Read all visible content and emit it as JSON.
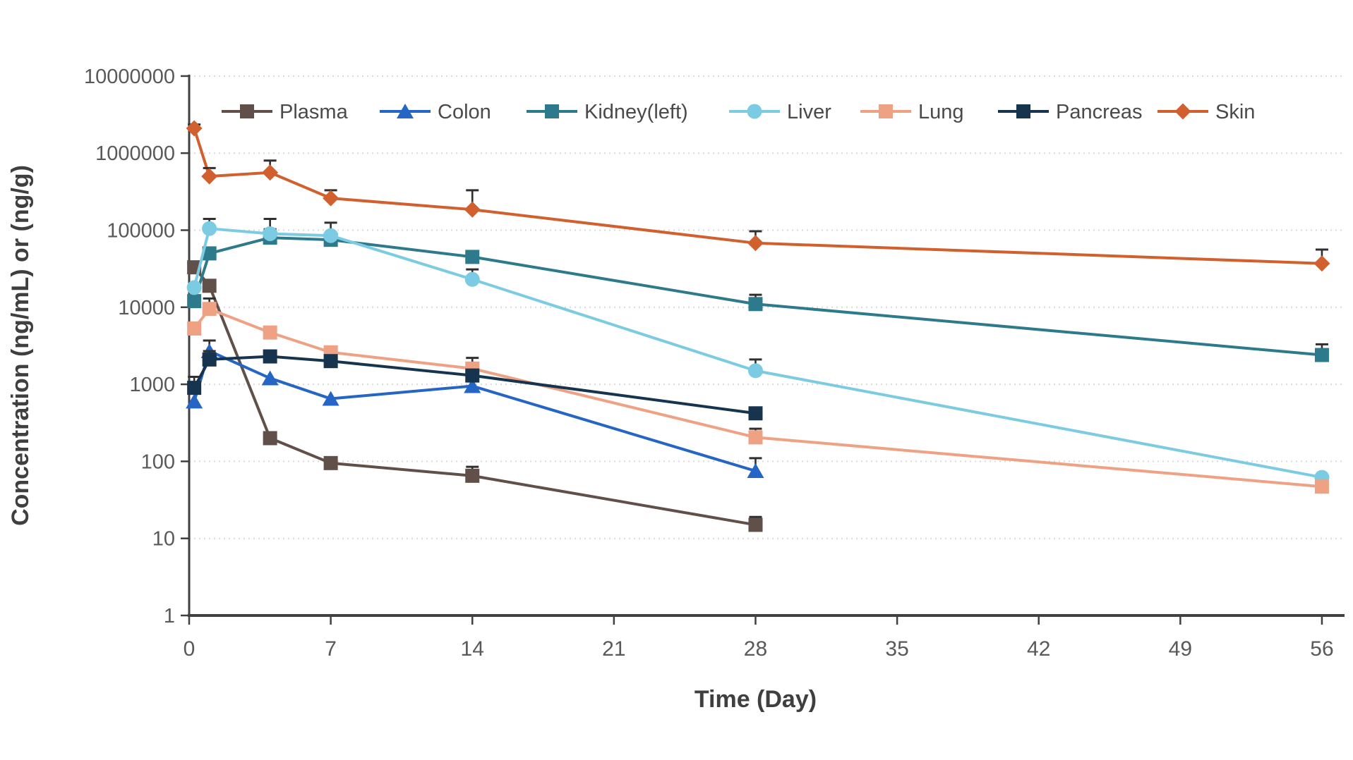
{
  "chart_data": {
    "type": "line",
    "title": "",
    "xlabel": "Time (Day)",
    "ylabel": "Concentration (ng/mL) or (ng/g)",
    "y_scale": "log",
    "xlim": [
      0,
      56
    ],
    "ylim": [
      1,
      10000000
    ],
    "x_ticks": [
      0,
      7,
      14,
      21,
      28,
      35,
      42,
      49,
      56
    ],
    "y_ticks": [
      1,
      10,
      100,
      1000,
      10000,
      100000,
      1000000,
      10000000
    ],
    "grid": "horizontal-dotted",
    "legend_position": "top-inside-horizontal",
    "colors": {
      "tick_label": "#595959",
      "axis_line": "#404040",
      "axis_title": "#3f3f3f",
      "legend_text": "#4a4a4a",
      "gridline": "#d9d9d9",
      "error_bar": "#2f2f2f"
    },
    "series": [
      {
        "name": "Plasma",
        "marker": "square",
        "color": "#61504a",
        "x": [
          0.25,
          1,
          4,
          7,
          14,
          28
        ],
        "y": [
          33000,
          19000,
          200,
          95,
          65,
          15
        ],
        "err_top": [
          null,
          null,
          null,
          null,
          85,
          19
        ]
      },
      {
        "name": "Colon",
        "marker": "triangle",
        "color": "#2565c5",
        "x": [
          0.25,
          1,
          4,
          7,
          14,
          28
        ],
        "y": [
          600,
          2700,
          1200,
          650,
          950,
          75
        ],
        "err_top": [
          null,
          3700,
          null,
          null,
          1400,
          110
        ]
      },
      {
        "name": "Kidney(left)",
        "marker": "square",
        "color": "#2d7a8c",
        "x": [
          0.25,
          1,
          4,
          7,
          14,
          28,
          56
        ],
        "y": [
          12000,
          50000,
          80000,
          75000,
          45000,
          11000,
          2400
        ],
        "err_top": [
          null,
          null,
          103000,
          null,
          null,
          14500,
          3300
        ]
      },
      {
        "name": "Liver",
        "marker": "circle",
        "color": "#7bcbe2",
        "x": [
          0.25,
          1,
          4,
          7,
          14,
          28,
          56
        ],
        "y": [
          18000,
          105000,
          90000,
          85000,
          23000,
          1500,
          62
        ],
        "err_top": [
          null,
          140000,
          140000,
          125000,
          31000,
          2100,
          null
        ]
      },
      {
        "name": "Lung",
        "marker": "square",
        "color": "#efa183",
        "x": [
          0.25,
          1,
          4,
          7,
          14,
          28,
          56
        ],
        "y": [
          5300,
          9500,
          4700,
          2600,
          1600,
          205,
          47
        ],
        "err_top": [
          null,
          13000,
          null,
          null,
          2200,
          265,
          null
        ]
      },
      {
        "name": "Pancreas",
        "marker": "square",
        "color": "#17344e",
        "x": [
          0.25,
          1,
          4,
          7,
          14,
          28
        ],
        "y": [
          900,
          2100,
          2300,
          2000,
          1300,
          420
        ],
        "err_top": [
          1250,
          2700,
          null,
          null,
          null,
          null
        ]
      },
      {
        "name": "Skin",
        "marker": "diamond",
        "color": "#d2602f",
        "x": [
          0.25,
          1,
          4,
          7,
          14,
          28,
          56
        ],
        "y": [
          2100000,
          500000,
          560000,
          260000,
          185000,
          68000,
          37000
        ],
        "err_top": [
          2350000,
          640000,
          800000,
          330000,
          330000,
          97000,
          56000
        ]
      }
    ]
  }
}
